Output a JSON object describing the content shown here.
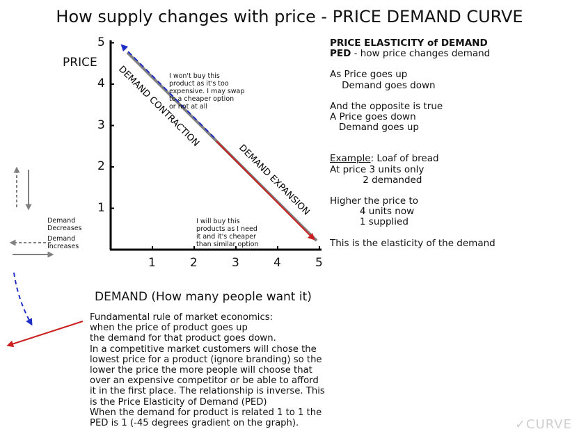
{
  "title": "How supply changes with price - PRICE DEMAND CURVE",
  "chart": {
    "y_axis_label": "PRICE",
    "x_axis_label": "DEMAND (How many people want it)",
    "x_ticks": [
      "1",
      "2",
      "3",
      "4",
      "5"
    ],
    "y_ticks": [
      "1",
      "2",
      "3",
      "4",
      "5"
    ],
    "curve_labels": {
      "contraction": "DEMAND CONTRACTION",
      "expansion": "DEMAND EXPANSION"
    },
    "note_top": [
      "I won't buy this",
      "product as it's too",
      "expensive. I may swap",
      "to a cheaper option",
      "or not at all"
    ],
    "note_bottom": [
      "I will buy this",
      "products as I need",
      "it and it's cheaper",
      "than similar option"
    ],
    "colors": {
      "curve": "#808080",
      "contraction_arrow": "#1f2ec4",
      "expansion_arrow": "#cc1f1f",
      "axis": "#000000"
    }
  },
  "chart_data": {
    "type": "line",
    "series": [
      {
        "x": [
          0.2,
          4.8
        ],
        "y": [
          4.8,
          0.2
        ]
      }
    ],
    "xlim": [
      0,
      5
    ],
    "ylim": [
      0,
      5
    ]
  },
  "legend": {
    "decreases": [
      "Demand",
      "Decreases"
    ],
    "increases": [
      "Demand",
      "Increases"
    ]
  },
  "side_panel": {
    "heading": "PRICE ELASTICITY of DEMAND",
    "ped_abbr": "PED",
    "ped_rest": " - how price changes demand",
    "lines_a": [
      "As Price goes up",
      "    Demand goes down"
    ],
    "lines_b": [
      "And the opposite is true",
      "A Price goes down",
      "   Demand goes up"
    ],
    "example_word": "Example",
    "example_rest": ": Loaf of bread",
    "lines_c": [
      "At price 3 units only",
      "           2 demanded"
    ],
    "lines_d": [
      "Higher the price to",
      "          4 units now",
      "          1 supplied"
    ],
    "closing": "This is the elasticity of the demand"
  },
  "body_text": [
    "Fundamental rule of market economics:",
    "when the price of product goes up",
    "the demand for that product goes down.",
    "In a competitive market customers will chose the",
    "lowest price for a product (ignore branding) so the",
    "lower the price the more people will choose that",
    "over an expensive competitor or be able to afford",
    "it in the first place. The relationship is inverse. This",
    "is the Price Elasticity of Demand (PED)",
    "When the demand for product is related 1 to 1 the",
    "PED is 1 (-45 degrees gradient on the graph)."
  ],
  "logo": "✓CURVE"
}
